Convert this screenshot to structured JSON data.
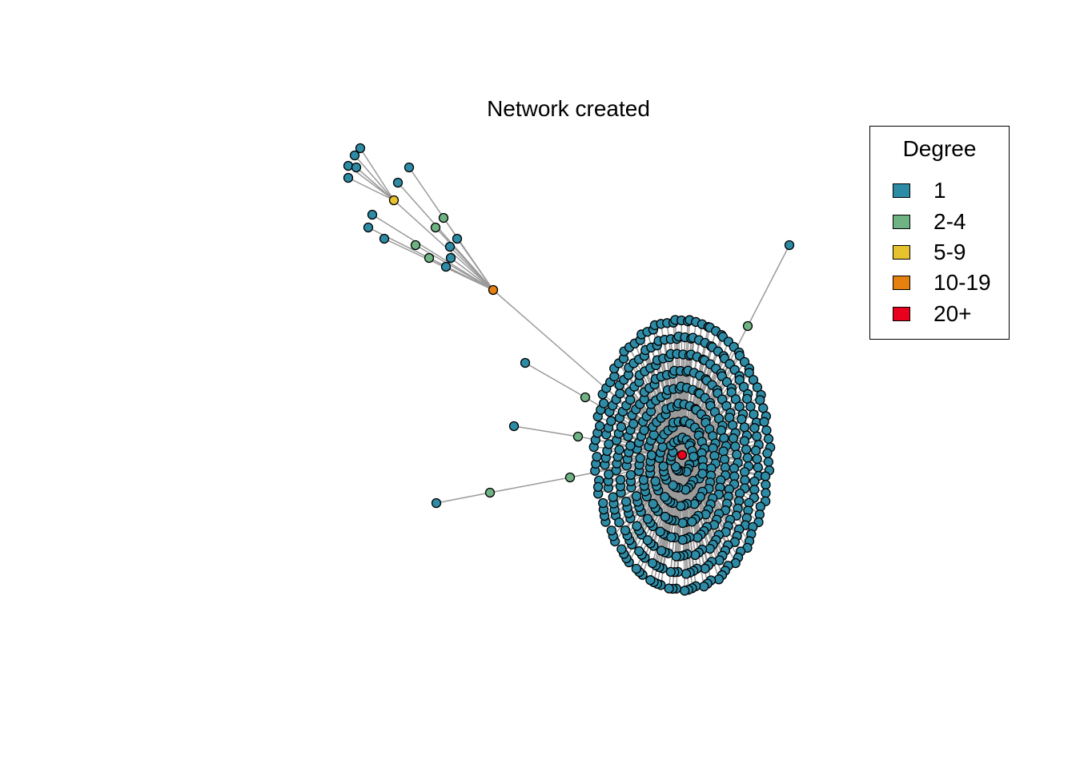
{
  "title": "Network created",
  "legend": {
    "title": "Degree",
    "items": [
      {
        "label": "1",
        "color": "#2E8BA6"
      },
      {
        "label": "2-4",
        "color": "#6FB384"
      },
      {
        "label": "5-9",
        "color": "#E5C22E"
      },
      {
        "label": "10-19",
        "color": "#E6800F"
      },
      {
        "label": "20+",
        "color": "#E8001C"
      }
    ]
  },
  "colors": {
    "edge": "#9A9A9A",
    "node_stroke": "#000000"
  }
}
